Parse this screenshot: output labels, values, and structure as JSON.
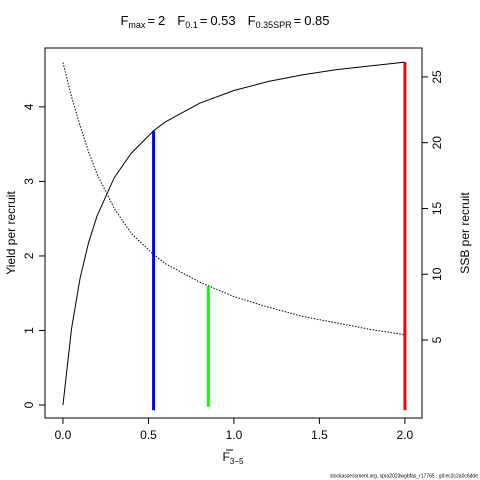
{
  "chart_data": {
    "type": "line",
    "x": [
      0,
      0.05,
      0.1,
      0.15,
      0.2,
      0.3,
      0.4,
      0.53,
      0.6,
      0.8,
      1.0,
      1.2,
      1.4,
      1.6,
      1.8,
      2.0
    ],
    "series": [
      {
        "color": "#000000",
        "dash": false,
        "values": [
          0,
          1.02,
          1.7,
          2.18,
          2.54,
          3.05,
          3.38,
          3.68,
          3.8,
          4.05,
          4.22,
          4.34,
          4.43,
          4.5,
          4.55,
          4.6
        ]
      },
      {
        "color": "#000000",
        "dash": true,
        "axis": "y2",
        "values": [
          26.1,
          23.5,
          21.3,
          19.3,
          17.6,
          15.0,
          13.1,
          11.5,
          10.8,
          9.4,
          8.3,
          7.5,
          6.8,
          6.3,
          5.8,
          5.4
        ]
      }
    ],
    "reference_lines": [
      {
        "symbol": "F",
        "subscript": "max",
        "relation": "=",
        "value": 2,
        "color": "#ff0000",
        "top": 4.6,
        "axis": "y"
      },
      {
        "symbol": "F",
        "subscript": "0.1",
        "relation": "=",
        "value": 0.53,
        "color": "#0000ff",
        "top": 3.68,
        "axis": "y"
      },
      {
        "symbol": "F",
        "subscript": "0.35SPR",
        "relation": "=",
        "value": 0.85,
        "color": "#00ff00",
        "top": 9.1,
        "axis": "y2"
      }
    ],
    "reference_base": -0.07,
    "xlabel": "F",
    "xlabel_subscript": "3−5",
    "ylabel": "Yield per recruit",
    "y2label": "SSB per recruit",
    "xlim": [
      -0.105,
      2.1
    ],
    "ylim": [
      -0.174,
      4.79
    ],
    "y2lim": [
      -0.93,
      27.2
    ],
    "xticks": [
      {
        "value": 0,
        "label": "0.0"
      },
      {
        "value": 0.5,
        "label": "0.5"
      },
      {
        "value": 1,
        "label": "1.0"
      },
      {
        "value": 1.5,
        "label": "1.5"
      },
      {
        "value": 2,
        "label": "2.0"
      }
    ],
    "yticks": [
      0,
      1,
      2,
      3,
      4
    ],
    "y2ticks": [
      5,
      10,
      15,
      20,
      25
    ],
    "footer": "stockassessment.org, spra2023wgbfas_r17765 , git:ec2c2a0c6dde"
  }
}
